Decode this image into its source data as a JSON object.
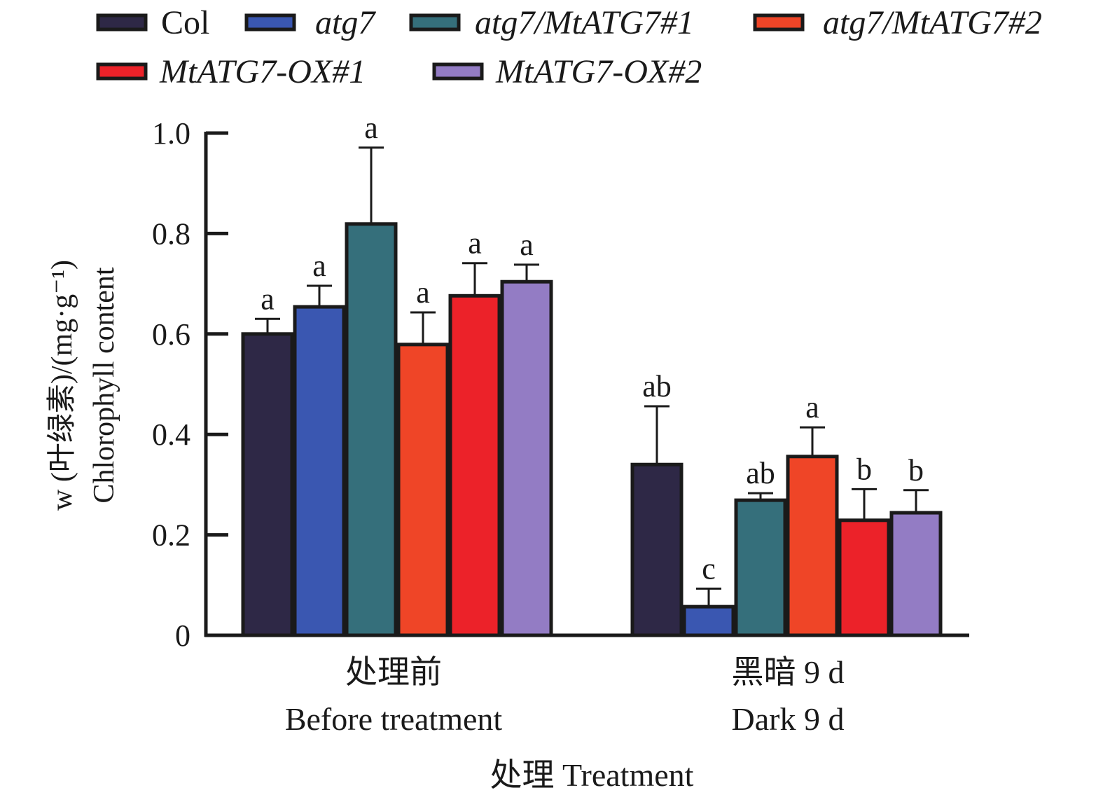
{
  "chart_data": {
    "type": "bar",
    "title": "",
    "xlabel": "处理 Treatment",
    "ylabel_lines": [
      "w (叶绿素)/(mg·g⁻¹)",
      "Chlorophyll content"
    ],
    "ylim": [
      0,
      1.0
    ],
    "yticks": [
      0,
      0.2,
      0.4,
      0.6,
      0.8,
      1.0
    ],
    "ytick_labels": [
      "0",
      "0.2",
      "0.4",
      "0.6",
      "0.8",
      "1.0"
    ],
    "grid": false,
    "legend_placement": "top",
    "categories": [
      {
        "line1": "处理前",
        "line2": "Before treatment"
      },
      {
        "line1": "黑暗 9 d",
        "line2": "Dark 9 d"
      }
    ],
    "series": [
      {
        "name": "Col",
        "italic": false,
        "color": "#2e2846",
        "values": [
          0.6,
          0.34
        ],
        "errors": [
          0.03,
          0.116
        ],
        "letters": [
          "a",
          "ab"
        ]
      },
      {
        "name": "atg7",
        "italic": true,
        "color": "#3a57b1",
        "values": [
          0.654,
          0.057
        ],
        "errors": [
          0.042,
          0.036
        ],
        "letters": [
          "a",
          "c"
        ]
      },
      {
        "name": "atg7/MtATG7#1",
        "italic": true,
        "color": "#356f7b",
        "values": [
          0.819,
          0.269
        ],
        "errors": [
          0.152,
          0.014
        ],
        "letters": [
          "a",
          "ab"
        ]
      },
      {
        "name": "atg7/MtATG7#2",
        "italic": true,
        "color": "#ef4527",
        "values": [
          0.579,
          0.356
        ],
        "errors": [
          0.064,
          0.058
        ],
        "letters": [
          "a",
          "a"
        ]
      },
      {
        "name": "MtATG7-OX#1",
        "italic": true,
        "color": "#ec2229",
        "values": [
          0.676,
          0.229
        ],
        "errors": [
          0.065,
          0.062
        ],
        "letters": [
          "a",
          "b"
        ]
      },
      {
        "name": "MtATG7-OX#2",
        "italic": true,
        "color": "#937cc4",
        "values": [
          0.704,
          0.244
        ],
        "errors": [
          0.034,
          0.045
        ],
        "letters": [
          "a",
          "b"
        ]
      }
    ]
  }
}
